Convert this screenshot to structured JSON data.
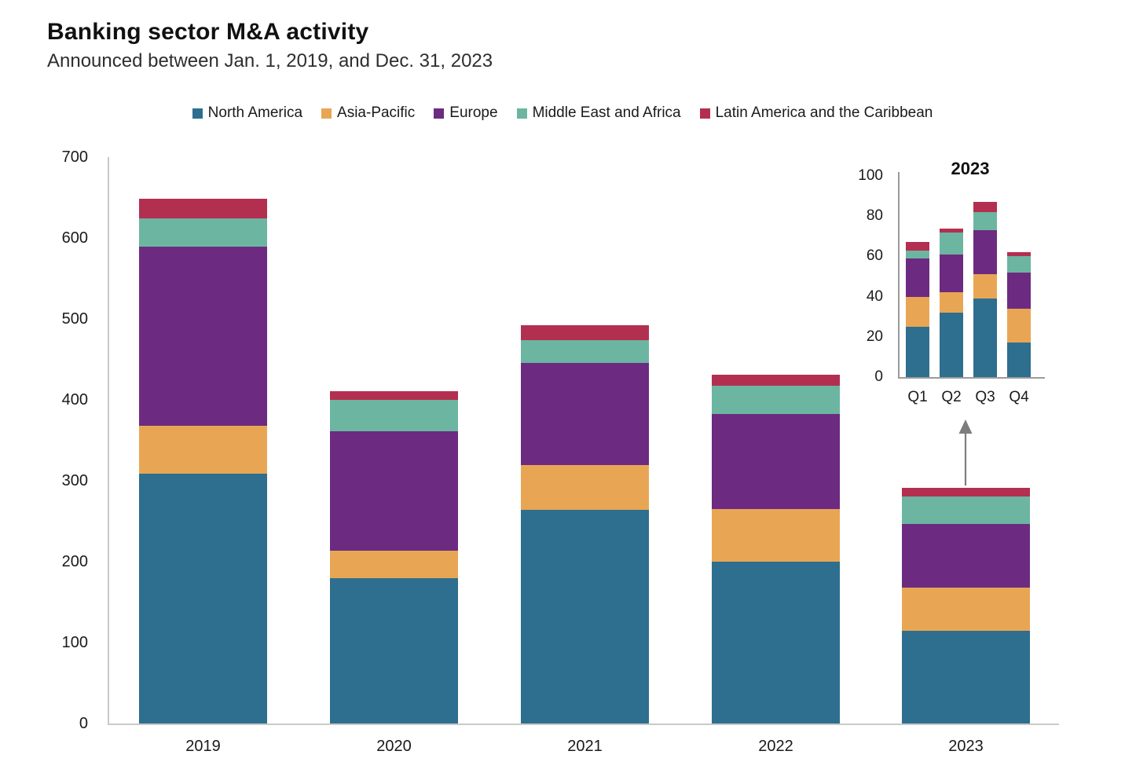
{
  "header": {
    "title": "Banking sector M&A activity",
    "subtitle": "Announced between Jan. 1, 2019, and Dec. 31, 2023"
  },
  "icons": {
    "inset_pointer": "arrow-up-icon"
  },
  "legend": {
    "items": [
      "North America",
      "Asia-Pacific",
      "Europe",
      "Middle East and Africa",
      "Latin America and the Caribbean"
    ]
  },
  "chart_data": [
    {
      "type": "bar",
      "stacked": true,
      "title": "Banking sector M&A activity",
      "subtitle": "Announced between Jan. 1, 2019, and Dec. 31, 2023",
      "categories": [
        "2019",
        "2020",
        "2021",
        "2022",
        "2023"
      ],
      "series": [
        {
          "name": "North America",
          "color": "#2e6e8e",
          "values": [
            309,
            180,
            264,
            200,
            115
          ]
        },
        {
          "name": "Asia-Pacific",
          "color": "#e8a655",
          "values": [
            59,
            34,
            55,
            65,
            53
          ]
        },
        {
          "name": "Europe",
          "color": "#6c2b80",
          "values": [
            221,
            147,
            127,
            118,
            79
          ]
        },
        {
          "name": "Middle East and Africa",
          "color": "#6cb5a1",
          "values": [
            35,
            39,
            28,
            34,
            34
          ]
        },
        {
          "name": "Latin America and the Caribbean",
          "color": "#b32f50",
          "values": [
            25,
            11,
            18,
            14,
            10
          ]
        }
      ],
      "totals": [
        649,
        411,
        492,
        431,
        291
      ],
      "ylim": [
        0,
        700
      ],
      "y_ticks": [
        0,
        100,
        200,
        300,
        400,
        500,
        600,
        700
      ],
      "grid": false,
      "legend_position": "top"
    },
    {
      "type": "bar",
      "stacked": true,
      "title": "2023",
      "categories": [
        "Q1",
        "Q2",
        "Q3",
        "Q4"
      ],
      "series": [
        {
          "name": "North America",
          "color": "#2e6e8e",
          "values": [
            25,
            32,
            39,
            17
          ]
        },
        {
          "name": "Asia-Pacific",
          "color": "#e8a655",
          "values": [
            15,
            10,
            12,
            17
          ]
        },
        {
          "name": "Europe",
          "color": "#6c2b80",
          "values": [
            19,
            19,
            22,
            18
          ]
        },
        {
          "name": "Middle East and Africa",
          "color": "#6cb5a1",
          "values": [
            4,
            11,
            9,
            8
          ]
        },
        {
          "name": "Latin America and the Caribbean",
          "color": "#b32f50",
          "values": [
            4,
            2,
            5,
            2
          ]
        }
      ],
      "totals": [
        67,
        74,
        87,
        62
      ],
      "ylim": [
        0,
        100
      ],
      "y_ticks": [
        0,
        20,
        40,
        60,
        80,
        100
      ],
      "grid": false,
      "legend_position": "none"
    }
  ]
}
